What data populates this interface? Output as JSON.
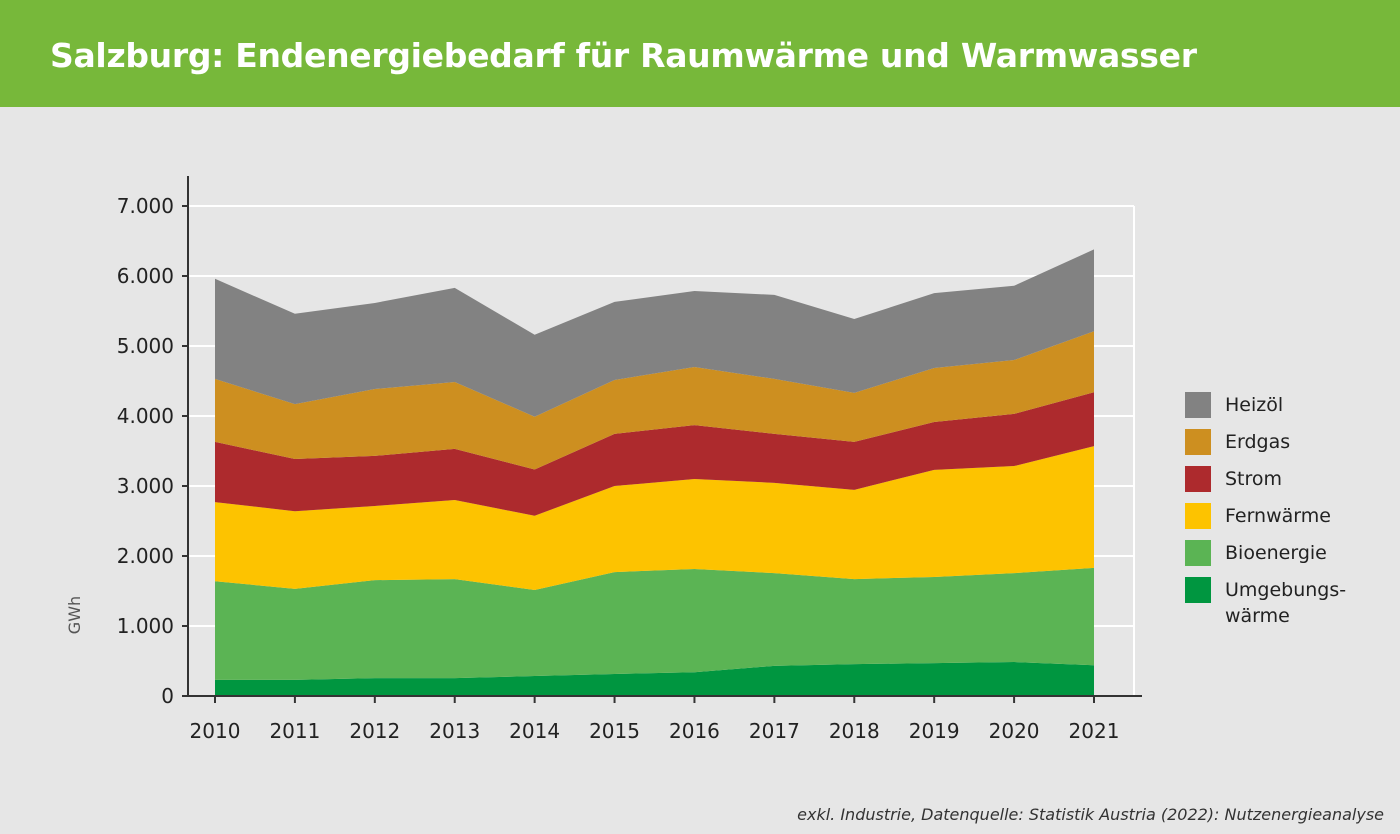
{
  "title": "Salzburg: Endenergiebedarf für Raumwärme und Warmwasser",
  "footer": "exkl. Industrie, Datenquelle: Statistik Austria (2022): Nutzenergieanalyse",
  "chart_data": {
    "type": "area",
    "stacked": true,
    "title": "Salzburg: Endenergiebedarf für Raumwärme und Warmwasser",
    "xlabel": "",
    "ylabel": "GWh",
    "ylim": [
      0,
      7000
    ],
    "yticks": [
      "0",
      "1.000",
      "2.000",
      "3.000",
      "4.000",
      "5.000",
      "6.000",
      "7.000"
    ],
    "grid": true,
    "legend_position": "right",
    "categories": [
      "2010",
      "2011",
      "2012",
      "2013",
      "2014",
      "2015",
      "2016",
      "2017",
      "2018",
      "2019",
      "2020",
      "2021"
    ],
    "series": [
      {
        "name": "Umgebungs-\nwärme",
        "color": "#009640",
        "values": [
          230,
          230,
          255,
          255,
          285,
          315,
          340,
          430,
          455,
          470,
          485,
          440
        ]
      },
      {
        "name": "Bioenergie",
        "color": "#5bb454",
        "values": [
          1410,
          1300,
          1400,
          1415,
          1230,
          1455,
          1475,
          1325,
          1215,
          1230,
          1270,
          1390
        ]
      },
      {
        "name": "Fernwärme",
        "color": "#fdc300",
        "values": [
          1130,
          1110,
          1060,
          1130,
          1060,
          1230,
          1285,
          1290,
          1275,
          1530,
          1530,
          1740
        ]
      },
      {
        "name": "Strom",
        "color": "#ad2a2d",
        "values": [
          860,
          745,
          715,
          730,
          660,
          745,
          770,
          700,
          685,
          685,
          745,
          770
        ]
      },
      {
        "name": "Erdgas",
        "color": "#cd8f20",
        "values": [
          900,
          785,
          955,
          955,
          755,
          770,
          830,
          785,
          700,
          770,
          770,
          870
        ]
      },
      {
        "name": "Heizöl",
        "color": "#828282",
        "values": [
          1430,
          1290,
          1230,
          1345,
          1170,
          1115,
          1085,
          1200,
          1055,
          1070,
          1060,
          1170
        ]
      }
    ]
  }
}
